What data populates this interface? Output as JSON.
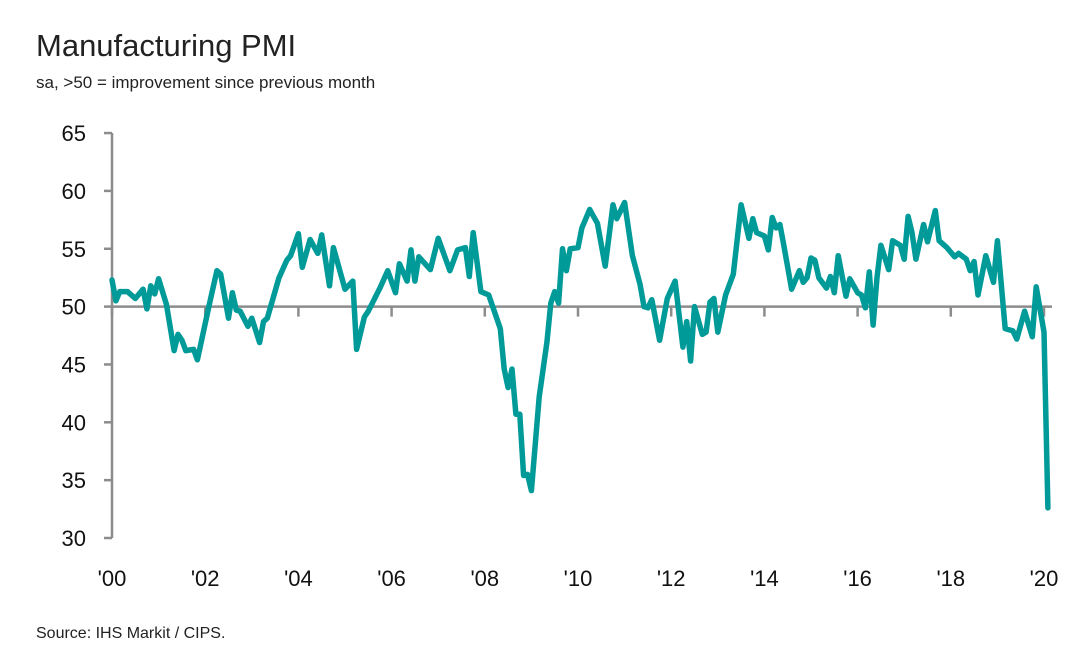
{
  "chart_data": {
    "type": "line",
    "title": "Manufacturing PMI",
    "subtitle": "sa, >50 = improvement since previous month",
    "source": "Source: IHS Markit / CIPS.",
    "ylim": [
      30,
      65
    ],
    "yticks": [
      30,
      35,
      40,
      45,
      50,
      55,
      60,
      65
    ],
    "xlim": [
      "2000-01",
      "2020-04"
    ],
    "xticks": [
      {
        "date": "2000-01",
        "label": "'00"
      },
      {
        "date": "2002-01",
        "label": "'02"
      },
      {
        "date": "2004-01",
        "label": "'04"
      },
      {
        "date": "2006-01",
        "label": "'06"
      },
      {
        "date": "2008-01",
        "label": "'08"
      },
      {
        "date": "2010-01",
        "label": "'10"
      },
      {
        "date": "2012-01",
        "label": "'12"
      },
      {
        "date": "2014-01",
        "label": "'14"
      },
      {
        "date": "2016-01",
        "label": "'16"
      },
      {
        "date": "2018-01",
        "label": "'18"
      },
      {
        "date": "2020-01",
        "label": "'20"
      }
    ],
    "reference_line": 50,
    "grid": false,
    "legend": "none",
    "colors": {
      "series": "#009a99",
      "axis": "#8c8c8c"
    },
    "series": [
      {
        "points": [
          [
            "2000-01",
            52.3
          ],
          [
            "2000-02",
            50.5
          ],
          [
            "2000-03",
            51.3
          ],
          [
            "2000-05",
            51.3
          ],
          [
            "2000-07",
            50.7
          ],
          [
            "2000-09",
            51.5
          ],
          [
            "2000-10",
            49.8
          ],
          [
            "2000-11",
            51.8
          ],
          [
            "2000-12",
            51.1
          ],
          [
            "2001-01",
            52.4
          ],
          [
            "2001-03",
            50.2
          ],
          [
            "2001-05",
            46.2
          ],
          [
            "2001-06",
            47.6
          ],
          [
            "2001-07",
            47.1
          ],
          [
            "2001-08",
            46.2
          ],
          [
            "2001-10",
            46.3
          ],
          [
            "2001-11",
            45.4
          ],
          [
            "2002-02",
            50.1
          ],
          [
            "2002-04",
            53.1
          ],
          [
            "2002-05",
            52.8
          ],
          [
            "2002-07",
            49.0
          ],
          [
            "2002-08",
            51.2
          ],
          [
            "2002-09",
            49.7
          ],
          [
            "2002-10",
            49.6
          ],
          [
            "2002-12",
            48.3
          ],
          [
            "2003-01",
            49.0
          ],
          [
            "2003-03",
            46.9
          ],
          [
            "2003-04",
            48.7
          ],
          [
            "2003-05",
            49.0
          ],
          [
            "2003-08",
            52.5
          ],
          [
            "2003-10",
            54.0
          ],
          [
            "2003-11",
            54.4
          ],
          [
            "2004-01",
            56.3
          ],
          [
            "2004-02",
            53.4
          ],
          [
            "2004-04",
            55.8
          ],
          [
            "2004-06",
            54.6
          ],
          [
            "2004-07",
            56.2
          ],
          [
            "2004-09",
            51.8
          ],
          [
            "2004-10",
            55.1
          ],
          [
            "2005-01",
            51.5
          ],
          [
            "2005-03",
            52.2
          ],
          [
            "2005-04",
            46.3
          ],
          [
            "2005-06",
            49.1
          ],
          [
            "2005-07",
            49.6
          ],
          [
            "2005-10",
            51.6
          ],
          [
            "2005-12",
            53.1
          ],
          [
            "2006-02",
            51.2
          ],
          [
            "2006-03",
            53.7
          ],
          [
            "2006-05",
            52.2
          ],
          [
            "2006-06",
            54.9
          ],
          [
            "2006-07",
            52.2
          ],
          [
            "2006-08",
            54.3
          ],
          [
            "2006-11",
            53.2
          ],
          [
            "2007-01",
            55.9
          ],
          [
            "2007-04",
            53.1
          ],
          [
            "2007-06",
            54.9
          ],
          [
            "2007-08",
            55.1
          ],
          [
            "2007-09",
            52.6
          ],
          [
            "2007-10",
            56.4
          ],
          [
            "2007-12",
            51.3
          ],
          [
            "2008-02",
            51.0
          ],
          [
            "2008-05",
            48.1
          ],
          [
            "2008-06",
            44.6
          ],
          [
            "2008-07",
            43.0
          ],
          [
            "2008-08",
            44.6
          ],
          [
            "2008-09",
            40.7
          ],
          [
            "2008-10",
            40.7
          ],
          [
            "2008-11",
            35.4
          ],
          [
            "2008-12",
            35.5
          ],
          [
            "2009-01",
            34.1
          ],
          [
            "2009-03",
            42.2
          ],
          [
            "2009-05",
            46.9
          ],
          [
            "2009-06",
            50.3
          ],
          [
            "2009-07",
            51.3
          ],
          [
            "2009-08",
            50.3
          ],
          [
            "2009-09",
            55.0
          ],
          [
            "2009-10",
            53.1
          ],
          [
            "2009-11",
            55.0
          ],
          [
            "2010-01",
            55.1
          ],
          [
            "2010-02",
            56.8
          ],
          [
            "2010-04",
            58.4
          ],
          [
            "2010-06",
            57.2
          ],
          [
            "2010-08",
            53.5
          ],
          [
            "2010-10",
            58.8
          ],
          [
            "2010-11",
            57.6
          ],
          [
            "2011-01",
            59.0
          ],
          [
            "2011-03",
            54.4
          ],
          [
            "2011-05",
            51.9
          ],
          [
            "2011-06",
            50.0
          ],
          [
            "2011-07",
            49.9
          ],
          [
            "2011-08",
            50.6
          ],
          [
            "2011-10",
            47.1
          ],
          [
            "2011-12",
            50.7
          ],
          [
            "2012-02",
            52.2
          ],
          [
            "2012-04",
            46.5
          ],
          [
            "2012-05",
            48.7
          ],
          [
            "2012-06",
            45.3
          ],
          [
            "2012-07",
            50.0
          ],
          [
            "2012-09",
            47.6
          ],
          [
            "2012-10",
            47.8
          ],
          [
            "2012-11",
            50.4
          ],
          [
            "2012-12",
            50.7
          ],
          [
            "2013-01",
            47.8
          ],
          [
            "2013-03",
            51.0
          ],
          [
            "2013-05",
            52.8
          ],
          [
            "2013-07",
            58.8
          ],
          [
            "2013-09",
            55.9
          ],
          [
            "2013-10",
            57.6
          ],
          [
            "2013-11",
            56.4
          ],
          [
            "2014-01",
            56.1
          ],
          [
            "2014-02",
            54.9
          ],
          [
            "2014-03",
            57.7
          ],
          [
            "2014-04",
            56.8
          ],
          [
            "2014-05",
            57.1
          ],
          [
            "2014-06",
            55.3
          ],
          [
            "2014-08",
            51.5
          ],
          [
            "2014-10",
            53.1
          ],
          [
            "2014-11",
            52.1
          ],
          [
            "2014-12",
            52.5
          ],
          [
            "2015-01",
            54.2
          ],
          [
            "2015-02",
            54.0
          ],
          [
            "2015-03",
            52.5
          ],
          [
            "2015-05",
            51.6
          ],
          [
            "2015-06",
            52.6
          ],
          [
            "2015-07",
            51.2
          ],
          [
            "2015-08",
            54.4
          ],
          [
            "2015-10",
            50.9
          ],
          [
            "2015-11",
            52.4
          ],
          [
            "2016-01",
            51.2
          ],
          [
            "2016-02",
            51.0
          ],
          [
            "2016-03",
            49.9
          ],
          [
            "2016-04",
            53.0
          ],
          [
            "2016-05",
            48.4
          ],
          [
            "2016-06",
            52.5
          ],
          [
            "2016-07",
            55.3
          ],
          [
            "2016-09",
            53.2
          ],
          [
            "2016-10",
            55.7
          ],
          [
            "2016-12",
            55.3
          ],
          [
            "2017-01",
            54.1
          ],
          [
            "2017-02",
            57.8
          ],
          [
            "2017-03",
            56.4
          ],
          [
            "2017-04",
            54.1
          ],
          [
            "2017-06",
            57.1
          ],
          [
            "2017-07",
            55.6
          ],
          [
            "2017-09",
            58.3
          ],
          [
            "2017-10",
            55.7
          ],
          [
            "2017-12",
            55.1
          ],
          [
            "2018-02",
            54.3
          ],
          [
            "2018-03",
            54.6
          ],
          [
            "2018-05",
            54.1
          ],
          [
            "2018-06",
            53.1
          ],
          [
            "2018-07",
            53.9
          ],
          [
            "2018-08",
            51.0
          ],
          [
            "2018-10",
            54.4
          ],
          [
            "2018-12",
            52.1
          ],
          [
            "2019-01",
            55.7
          ],
          [
            "2019-03",
            48.1
          ],
          [
            "2019-05",
            47.9
          ],
          [
            "2019-06",
            47.2
          ],
          [
            "2019-08",
            49.6
          ],
          [
            "2019-10",
            47.4
          ],
          [
            "2019-11",
            51.7
          ],
          [
            "2020-01",
            47.8
          ],
          [
            "2020-02",
            32.6
          ]
        ]
      }
    ]
  }
}
